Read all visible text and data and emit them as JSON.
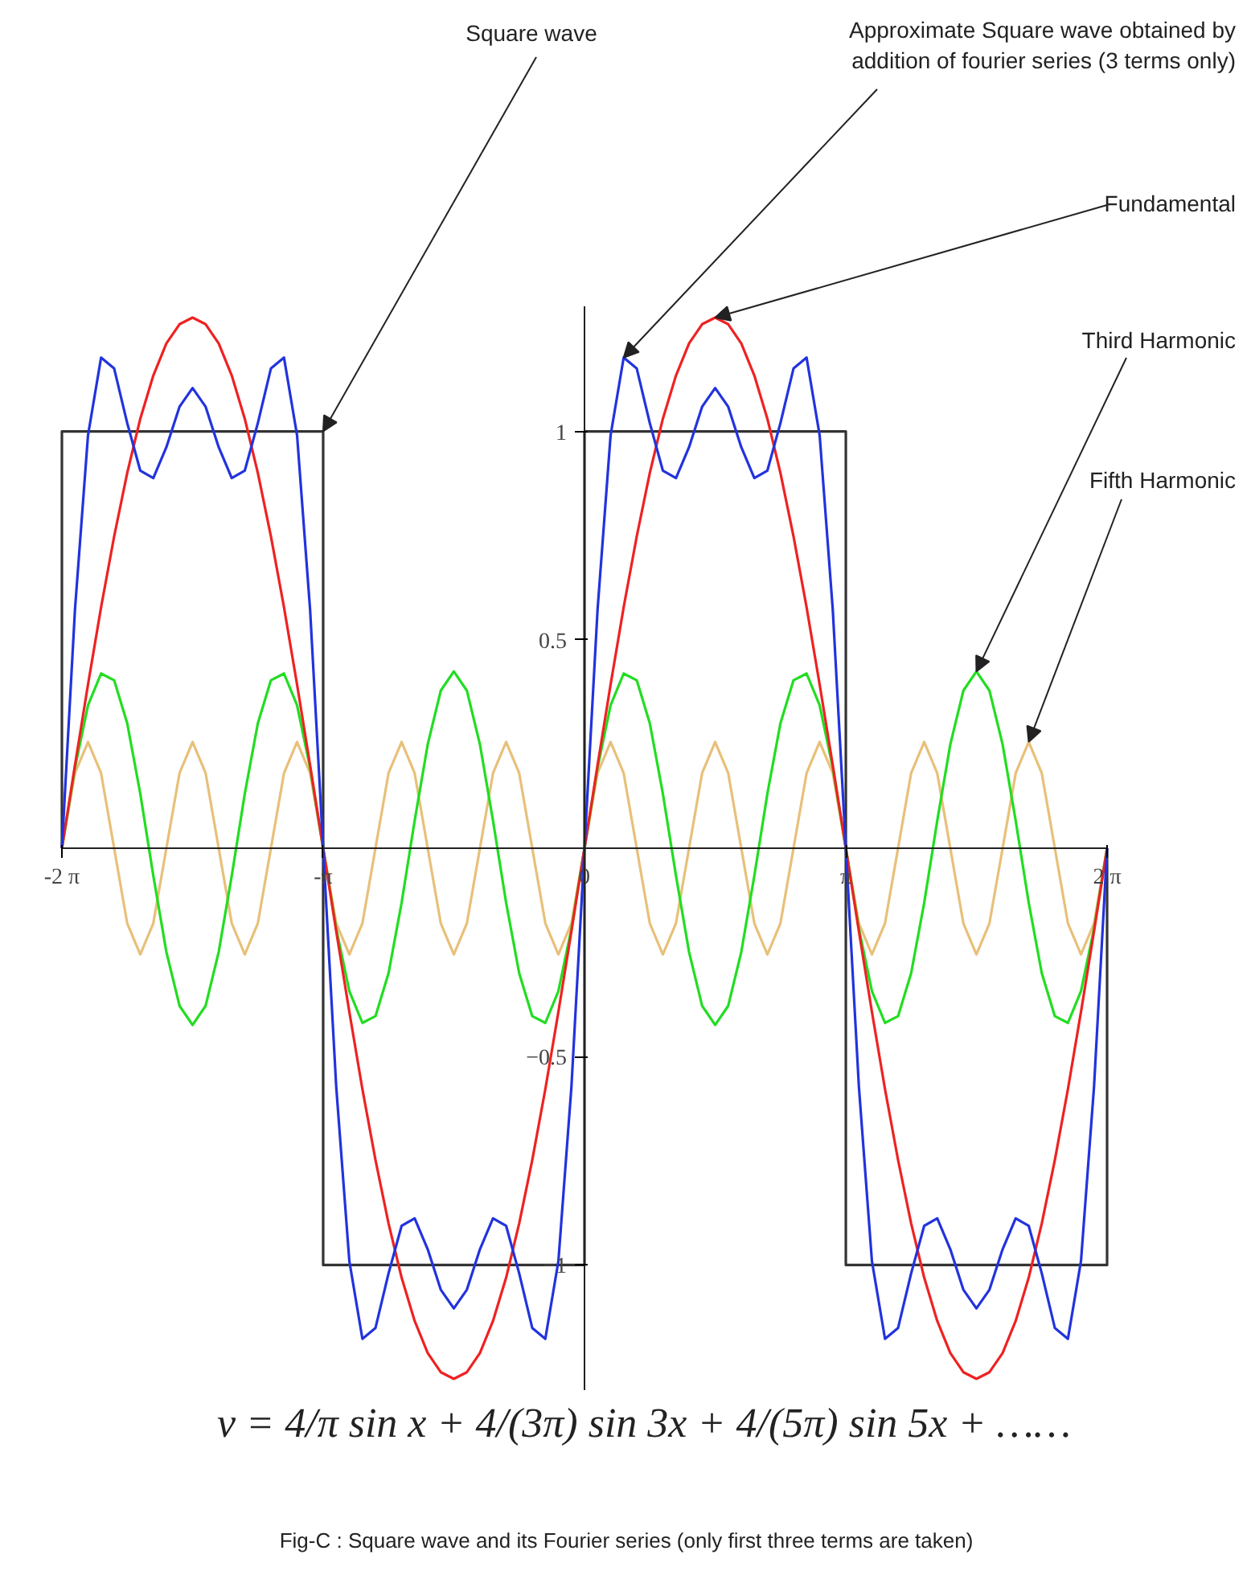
{
  "chart_data": {
    "type": "line",
    "xlim": [
      -6.283,
      6.283
    ],
    "ylim": [
      -1.3,
      1.3
    ],
    "xticks": [
      {
        "value": -6.283,
        "label": "-2 π"
      },
      {
        "value": -3.142,
        "label": "-π"
      },
      {
        "value": 0,
        "label": "0"
      },
      {
        "value": 3.142,
        "label": "π"
      },
      {
        "value": 6.283,
        "label": "2 π"
      }
    ],
    "yticks": [
      -1,
      -0.5,
      0.5,
      1
    ],
    "grid": false,
    "marker": "none",
    "line_style": "solid",
    "x": [
      -6.283,
      -6.126,
      -5.969,
      -5.812,
      -5.655,
      -5.498,
      -5.341,
      -5.184,
      -5.027,
      -4.869,
      -4.712,
      -4.555,
      -4.398,
      -4.241,
      -4.084,
      -3.927,
      -3.77,
      -3.613,
      -3.456,
      -3.299,
      -3.142,
      -2.985,
      -2.827,
      -2.67,
      -2.513,
      -2.356,
      -2.199,
      -2.042,
      -1.885,
      -1.728,
      -1.571,
      -1.414,
      -1.257,
      -1.1,
      -0.942,
      -0.785,
      -0.628,
      -0.471,
      -0.314,
      -0.157,
      0,
      0.157,
      0.314,
      0.471,
      0.628,
      0.785,
      0.942,
      1.1,
      1.257,
      1.414,
      1.571,
      1.728,
      1.885,
      2.042,
      2.199,
      2.356,
      2.513,
      2.67,
      2.827,
      2.985,
      3.142,
      3.299,
      3.456,
      3.613,
      3.77,
      3.927,
      4.084,
      4.241,
      4.398,
      4.555,
      4.712,
      4.869,
      5.027,
      5.184,
      5.341,
      5.498,
      5.655,
      5.812,
      5.969,
      6.126,
      6.283
    ],
    "series": [
      {
        "color": "#333333",
        "x": [
          -6.283,
          -6.283,
          -3.142,
          -3.142,
          0,
          0,
          3.142,
          3.142,
          6.283,
          6.283
        ],
        "values": [
          0,
          1,
          1,
          -1,
          -1,
          1,
          1,
          -1,
          -1,
          0
        ]
      },
      {
        "color": "#e8c07a",
        "values": [
          0,
          0.18,
          0.255,
          0.18,
          0,
          -0.18,
          -0.255,
          -0.18,
          0,
          0.18,
          0.255,
          0.18,
          0,
          -0.18,
          -0.255,
          -0.18,
          0,
          0.18,
          0.255,
          0.18,
          0,
          -0.18,
          -0.255,
          -0.18,
          0,
          0.18,
          0.255,
          0.18,
          0,
          -0.18,
          -0.255,
          -0.18,
          0,
          0.18,
          0.255,
          0.18,
          0,
          -0.18,
          -0.255,
          -0.18,
          0,
          0.18,
          0.255,
          0.18,
          0,
          -0.18,
          -0.255,
          -0.18,
          0,
          0.18,
          0.255,
          0.18,
          0,
          -0.18,
          -0.255,
          -0.18,
          0,
          0.18,
          0.255,
          0.18,
          0,
          -0.18,
          -0.255,
          -0.18,
          0,
          0.18,
          0.255,
          0.18,
          0,
          -0.18,
          -0.255,
          -0.18,
          0,
          0.18,
          0.255,
          0.18,
          0,
          -0.18,
          -0.255,
          -0.18,
          0
        ]
      },
      {
        "color": "#22dd22",
        "values": [
          0,
          0.193,
          0.343,
          0.419,
          0.403,
          0.3,
          0.131,
          -0.066,
          -0.249,
          -0.378,
          -0.424,
          -0.378,
          -0.249,
          -0.066,
          0.131,
          0.3,
          0.403,
          0.419,
          0.343,
          0.193,
          0,
          -0.193,
          -0.343,
          -0.419,
          -0.403,
          -0.3,
          -0.131,
          0.066,
          0.249,
          0.378,
          0.424,
          0.378,
          0.249,
          0.066,
          -0.131,
          -0.3,
          -0.403,
          -0.419,
          -0.343,
          -0.193,
          0,
          0.193,
          0.343,
          0.419,
          0.403,
          0.3,
          0.131,
          -0.066,
          -0.249,
          -0.378,
          -0.424,
          -0.378,
          -0.249,
          -0.066,
          0.131,
          0.3,
          0.403,
          0.419,
          0.343,
          0.193,
          0,
          -0.193,
          -0.343,
          -0.419,
          -0.403,
          -0.3,
          -0.131,
          0.066,
          0.249,
          0.378,
          0.424,
          0.378,
          0.249,
          0.066,
          -0.131,
          -0.3,
          -0.403,
          -0.419,
          -0.343,
          -0.193,
          0
        ]
      },
      {
        "color": "#ee2222",
        "values": [
          0,
          0.199,
          0.393,
          0.578,
          0.748,
          0.9,
          1.03,
          1.134,
          1.211,
          1.257,
          1.273,
          1.257,
          1.211,
          1.134,
          1.03,
          0.9,
          0.748,
          0.578,
          0.393,
          0.199,
          0,
          -0.199,
          -0.393,
          -0.578,
          -0.748,
          -0.9,
          -1.03,
          -1.134,
          -1.211,
          -1.257,
          -1.273,
          -1.257,
          -1.211,
          -1.134,
          -1.03,
          -0.9,
          -0.748,
          -0.578,
          -0.393,
          -0.199,
          0,
          0.199,
          0.393,
          0.578,
          0.748,
          0.9,
          1.03,
          1.134,
          1.211,
          1.257,
          1.273,
          1.257,
          1.211,
          1.134,
          1.03,
          0.9,
          0.748,
          0.578,
          0.393,
          0.199,
          0,
          -0.199,
          -0.393,
          -0.578,
          -0.748,
          -0.9,
          -1.03,
          -1.134,
          -1.211,
          -1.257,
          -1.273,
          -1.257,
          -1.211,
          -1.134,
          -1.03,
          -0.9,
          -0.748,
          -0.578,
          -0.393,
          -0.199,
          0
        ]
      },
      {
        "color": "#2233dd",
        "values": [
          0,
          0.572,
          0.991,
          1.177,
          1.151,
          1.02,
          0.906,
          0.888,
          0.962,
          1.059,
          1.104,
          1.059,
          0.962,
          0.888,
          0.906,
          1.02,
          1.151,
          1.177,
          0.991,
          0.572,
          0,
          -0.572,
          -0.991,
          -1.177,
          -1.151,
          -1.02,
          -0.906,
          -0.888,
          -0.962,
          -1.059,
          -1.104,
          -1.059,
          -0.962,
          -0.888,
          -0.906,
          -1.02,
          -1.151,
          -1.177,
          -0.991,
          -0.572,
          0,
          0.572,
          0.991,
          1.177,
          1.151,
          1.02,
          0.906,
          0.888,
          0.962,
          1.059,
          1.104,
          1.059,
          0.962,
          0.888,
          0.906,
          1.02,
          1.151,
          1.177,
          0.991,
          0.572,
          0,
          -0.572,
          -0.991,
          -1.177,
          -1.151,
          -1.02,
          -0.906,
          -0.888,
          -0.962,
          -1.059,
          -1.104,
          -1.059,
          -0.962,
          -0.888,
          -0.906,
          -1.02,
          -1.151,
          -1.177,
          -0.991,
          -0.572,
          0
        ]
      }
    ],
    "annotations": [
      {
        "text": "Square wave",
        "x": -3.142,
        "y": 1
      },
      {
        "text": "Approximate Square wave obtained by\naddition of fourier series (3 terms only)",
        "x": 0.471,
        "y": 1.177
      },
      {
        "text": "Fundamental",
        "x": 1.571,
        "y": 1.273
      },
      {
        "text": "Third Harmonic",
        "x": 4.712,
        "y": 0.424
      },
      {
        "text": "Fifth Harmonic",
        "x": 5.341,
        "y": 0.255
      },
      "ν = 4/π sin x + 4/(3π) sin 3x + 4/(5π) sin 5x + ……",
      "Fig-C : Square wave and its Fourier series (only first three terms are taken)"
    ]
  }
}
